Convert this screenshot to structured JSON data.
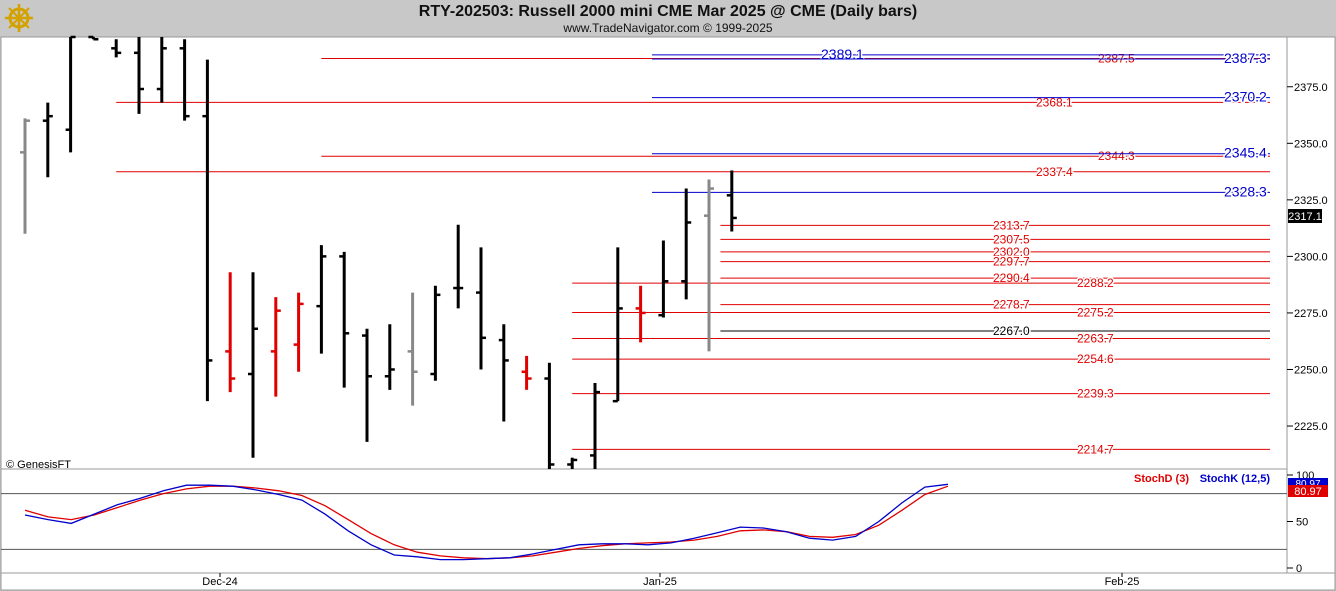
{
  "header": {
    "title": "RTY-202503:  Russell 2000 mini CME Mar 2025 @ CME  (Daily bars)",
    "subtitle": "www.TradeNavigator.com © 1999-2025",
    "logo_icon": "golden-ship-wheel-logo"
  },
  "chart_data": [
    {
      "type": "ohlc",
      "ylim": [
        2206,
        2397
      ],
      "ylabel": "",
      "y_ticks": [
        "2375.0",
        "2350.0",
        "2325.0",
        "2300.0",
        "2275.0",
        "2250.0",
        "2225.0"
      ],
      "x_ticks": [
        "Dec-24",
        "Jan-25",
        "Feb-25"
      ],
      "last_price_label": "2317.1",
      "watermark": "© GenesisFT",
      "colors": {
        "normal": "#000000",
        "highlight_red": "#e00000",
        "highlight_gray": "#888888",
        "resistance_line": "#e00000",
        "projection_line": "#0000cc"
      },
      "bars": [
        {
          "o": 2346,
          "h": 2361,
          "l": 2310,
          "c": 2360,
          "color": "gray"
        },
        {
          "o": 2360,
          "h": 2368,
          "l": 2335,
          "c": 2362,
          "color": "black"
        },
        {
          "o": 2356,
          "h": 2398,
          "l": 2346,
          "c": 2397,
          "color": "black"
        },
        {
          "o": 2397,
          "h": 2398,
          "l": 2396,
          "c": 2396,
          "color": "black"
        },
        {
          "o": 2392,
          "h": 2396,
          "l": 2388,
          "c": 2390,
          "color": "black"
        },
        {
          "o": 2390,
          "h": 2398,
          "l": 2363,
          "c": 2374,
          "color": "black"
        },
        {
          "o": 2374,
          "h": 2398,
          "l": 2368,
          "c": 2392,
          "color": "black"
        },
        {
          "o": 2392,
          "h": 2396,
          "l": 2360,
          "c": 2362,
          "color": "black"
        },
        {
          "o": 2362,
          "h": 2387,
          "l": 2236,
          "c": 2254,
          "color": "black"
        },
        {
          "o": 2258,
          "h": 2293,
          "l": 2240,
          "c": 2246,
          "color": "red"
        },
        {
          "o": 2248,
          "h": 2293,
          "l": 2211,
          "c": 2268,
          "color": "black"
        },
        {
          "o": 2258,
          "h": 2282,
          "l": 2238,
          "c": 2276,
          "color": "red"
        },
        {
          "o": 2261,
          "h": 2284,
          "l": 2249,
          "c": 2279,
          "color": "red"
        },
        {
          "o": 2278,
          "h": 2305,
          "l": 2257,
          "c": 2300,
          "color": "black"
        },
        {
          "o": 2300,
          "h": 2302,
          "l": 2242,
          "c": 2266,
          "color": "black"
        },
        {
          "o": 2265,
          "h": 2268,
          "l": 2218,
          "c": 2247,
          "color": "black"
        },
        {
          "o": 2247,
          "h": 2270,
          "l": 2241,
          "c": 2250,
          "color": "black"
        },
        {
          "o": 2258,
          "h": 2284,
          "l": 2234,
          "c": 2249,
          "color": "gray"
        },
        {
          "o": 2248,
          "h": 2287,
          "l": 2245,
          "c": 2283,
          "color": "black"
        },
        {
          "o": 2286,
          "h": 2314,
          "l": 2277,
          "c": 2286,
          "color": "black"
        },
        {
          "o": 2284,
          "h": 2304,
          "l": 2250,
          "c": 2264,
          "color": "black"
        },
        {
          "o": 2263,
          "h": 2270,
          "l": 2227,
          "c": 2254,
          "color": "black"
        },
        {
          "o": 2249,
          "h": 2256,
          "l": 2241,
          "c": 2246,
          "color": "red"
        },
        {
          "o": 2246,
          "h": 2253,
          "l": 2206,
          "c": 2208,
          "color": "black"
        },
        {
          "o": 2208,
          "h": 2211,
          "l": 2206,
          "c": 2210,
          "color": "black"
        },
        {
          "o": 2212,
          "h": 2244,
          "l": 2206,
          "c": 2240,
          "color": "black"
        },
        {
          "o": 2236,
          "h": 2304,
          "l": 2236,
          "c": 2277,
          "color": "black"
        },
        {
          "o": 2277,
          "h": 2287,
          "l": 2262,
          "c": 2275,
          "color": "red"
        },
        {
          "o": 2274,
          "h": 2307,
          "l": 2273,
          "c": 2289,
          "color": "black"
        },
        {
          "o": 2289,
          "h": 2330,
          "l": 2281,
          "c": 2315,
          "color": "black"
        },
        {
          "o": 2318,
          "h": 2334,
          "l": 2258,
          "c": 2330,
          "color": "gray"
        },
        {
          "o": 2327,
          "h": 2338,
          "l": 2311,
          "c": 2317,
          "color": "black"
        }
      ],
      "red_levels": [
        {
          "label": "2387.5",
          "value": 2387.5,
          "start": 13.0
        },
        {
          "label": "2368.1",
          "value": 2368.1,
          "start": 4.0
        },
        {
          "label": "2344.3",
          "value": 2344.3,
          "start": 13.0
        },
        {
          "label": "2337.4",
          "value": 2337.4,
          "start": 4.0
        },
        {
          "label": "2313.7",
          "value": 2313.7,
          "start": 30.5
        },
        {
          "label": "2307.5",
          "value": 2307.5,
          "start": 30.5
        },
        {
          "label": "2302.0",
          "value": 2302.0,
          "start": 30.5
        },
        {
          "label": "2297.7",
          "value": 2297.7,
          "start": 30.5
        },
        {
          "label": "2290.4",
          "value": 2290.4,
          "start": 30.5
        },
        {
          "label": "2288.2",
          "value": 2288.2,
          "start": 24.0
        },
        {
          "label": "2278.7",
          "value": 2278.7,
          "start": 30.5
        },
        {
          "label": "2275.2",
          "value": 2275.2,
          "start": 24.0
        },
        {
          "label": "2263.7",
          "value": 2263.7,
          "start": 24.0
        },
        {
          "label": "2254.6",
          "value": 2254.6,
          "start": 24.0
        },
        {
          "label": "2239.3",
          "value": 2239.3,
          "start": 24.0
        },
        {
          "label": "2214.7",
          "value": 2214.7,
          "start": 24.0
        }
      ],
      "black_levels": [
        {
          "label": "2267.0",
          "value": 2267.0,
          "start": 30.5
        }
      ],
      "blue_levels": [
        {
          "label": "2389.1",
          "value": 2389.1,
          "start": 27.5
        },
        {
          "label": "2387.3",
          "value": 2387.3,
          "start": 27.5
        },
        {
          "label": "2370.2",
          "value": 2370.2,
          "start": 27.5
        },
        {
          "label": "2345.4",
          "value": 2345.4,
          "start": 27.5
        },
        {
          "label": "2328.3",
          "value": 2328.3,
          "start": 27.5
        }
      ]
    },
    {
      "type": "line",
      "ylim": [
        0,
        100
      ],
      "y_ticks": [
        "100",
        "50",
        "0"
      ],
      "reference_levels": [
        80,
        20
      ],
      "legend": [
        {
          "name": "StochD (3)",
          "color": "#e00000"
        },
        {
          "name": "StochK (12,5)",
          "color": "#0000cc"
        }
      ],
      "value_boxes": [
        "80.97",
        "80.97"
      ],
      "series": [
        {
          "name": "StochD (3)",
          "color": "#e00000",
          "values": [
            62,
            55,
            52,
            57,
            65,
            73,
            80,
            85,
            88,
            88,
            86,
            83,
            78,
            67,
            52,
            37,
            25,
            17,
            13,
            11,
            10,
            11,
            13,
            17,
            21,
            24,
            26,
            27,
            28,
            30,
            34,
            40,
            41,
            39,
            34,
            33,
            36,
            46,
            62,
            79,
            88
          ]
        },
        {
          "name": "StochK (12,5)",
          "color": "#0000cc",
          "values": [
            57,
            52,
            48,
            58,
            68,
            75,
            83,
            89,
            89,
            88,
            84,
            79,
            73,
            58,
            40,
            25,
            14,
            12,
            9,
            9,
            10,
            11,
            15,
            20,
            25,
            26,
            26,
            25,
            27,
            32,
            38,
            44,
            43,
            39,
            32,
            30,
            34,
            50,
            70,
            87,
            90
          ]
        }
      ]
    }
  ]
}
